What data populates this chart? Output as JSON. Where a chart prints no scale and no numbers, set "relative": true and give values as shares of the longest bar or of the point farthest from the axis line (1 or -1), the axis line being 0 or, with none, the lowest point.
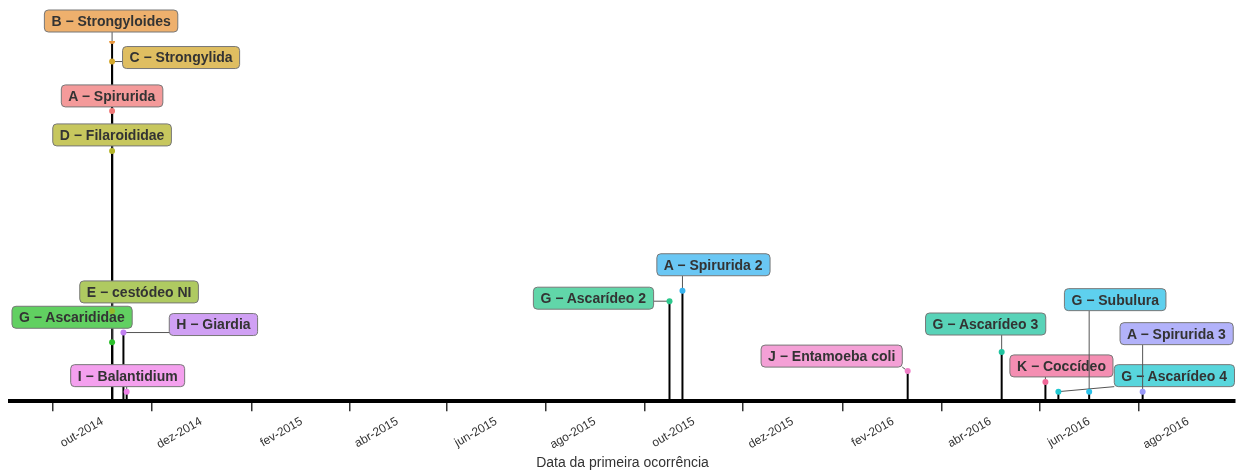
{
  "chart_data": {
    "type": "lollipop",
    "relative": true,
    "xlabel": "Data da primeira ocorrência",
    "x": [
      "2014-10-07",
      "2014-10-07",
      "2014-10-07",
      "2014-10-07",
      "2014-10-07",
      "2014-10-07",
      "2014-10-14",
      "2014-10-16",
      "2015-09-16",
      "2015-09-24",
      "2016-02-10",
      "2016-04-08",
      "2016-05-05",
      "2016-05-13",
      "2016-06-01",
      "2016-07-04"
    ],
    "values": [
      1.0,
      0.943,
      0.806,
      0.695,
      0.251,
      0.164,
      0.191,
      0.027,
      0.278,
      0.307,
      0.084,
      0.137,
      0.054,
      0.027,
      0.027,
      0.027
    ],
    "colors": [
      "#e8963c",
      "#d4a82c",
      "#f07878",
      "#b4b428",
      "#94b82c",
      "#2cc02c",
      "#c080f0",
      "#f080e8",
      "#2cc88c",
      "#38b4f0",
      "#f080c8",
      "#20c4a0",
      "#f06898",
      "#20c8d0",
      "#28c0e8",
      "#9898f8"
    ],
    "xlim": [
      "2014-08-05",
      "2016-08-30"
    ],
    "xticks": [
      {
        "value": "2014-10-01",
        "label": "out-2014"
      },
      {
        "value": "2014-12-01",
        "label": "dez-2014"
      },
      {
        "value": "2015-02-01",
        "label": "fev-2015"
      },
      {
        "value": "2015-04-01",
        "label": "abr-2015"
      },
      {
        "value": "2015-06-01",
        "label": "jun-2015"
      },
      {
        "value": "2015-08-01",
        "label": "ago-2015"
      },
      {
        "value": "2015-10-01",
        "label": "out-2015"
      },
      {
        "value": "2015-12-01",
        "label": "dez-2015"
      },
      {
        "value": "2016-02-01",
        "label": "fev-2016"
      },
      {
        "value": "2016-04-01",
        "label": "abr-2016"
      },
      {
        "value": "2016-06-01",
        "label": "jun-2016"
      },
      {
        "value": "2016-08-01",
        "label": "ago-2016"
      }
    ],
    "annotations": [
      {
        "text": "B − Strongyloides",
        "x": "2014-10-07",
        "y": 1.0
      },
      {
        "text": "C − Strongylida",
        "x": "2014-10-07",
        "y": 0.943
      },
      {
        "text": "A − Spirurida",
        "x": "2014-10-07",
        "y": 0.806
      },
      {
        "text": "D − Filaroididae",
        "x": "2014-10-07",
        "y": 0.695
      },
      {
        "text": "E − cestódeo NI",
        "x": "2014-10-07",
        "y": 0.251
      },
      {
        "text": "G − Ascarididae",
        "x": "2014-10-07",
        "y": 0.164
      },
      {
        "text": "H − Giardia",
        "x": "2014-10-14",
        "y": 0.191
      },
      {
        "text": "I − Balantidium",
        "x": "2014-10-16",
        "y": 0.027
      },
      {
        "text": "G − Ascarídeo 2",
        "x": "2015-09-16",
        "y": 0.278
      },
      {
        "text": "A − Spirurida 2",
        "x": "2015-09-24",
        "y": 0.307
      },
      {
        "text": "J − Entamoeba coli",
        "x": "2016-02-10",
        "y": 0.084
      },
      {
        "text": "G − Ascarídeo 3",
        "x": "2016-04-08",
        "y": 0.137
      },
      {
        "text": "K − Coccídeo",
        "x": "2016-05-05",
        "y": 0.054
      },
      {
        "text": "G − Ascarídeo 4",
        "x": "2016-05-13",
        "y": 0.027
      },
      {
        "text": "G − Subulura",
        "x": "2016-06-01",
        "y": 0.027
      },
      {
        "text": "A − Spirurida 3",
        "x": "2016-07-04",
        "y": 0.027
      }
    ]
  }
}
